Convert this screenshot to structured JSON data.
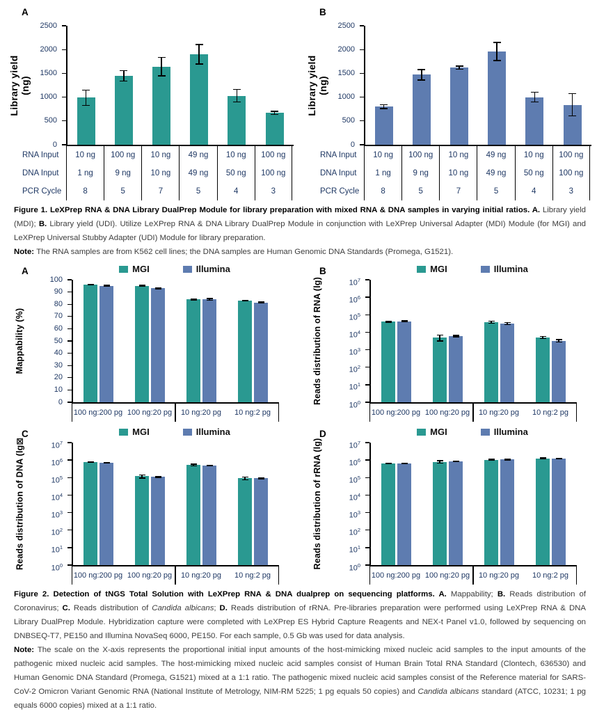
{
  "colors": {
    "mgi_teal": "#2A9991",
    "illumina_blue": "#5E7CB0",
    "axis_text": "#1F3864",
    "body_text": "#3D3D3D",
    "axis_line": "#000000"
  },
  "figure1": {
    "table": {
      "rows": [
        {
          "label": "RNA Input",
          "values": [
            "10 ng",
            "100 ng",
            "10 ng",
            "49 ng",
            "10 ng",
            "100 ng"
          ]
        },
        {
          "label": "DNA Input",
          "values": [
            "1 ng",
            "9 ng",
            "10 ng",
            "49 ng",
            "50 ng",
            "100 ng"
          ]
        },
        {
          "label": "PCR Cycle",
          "values": [
            "8",
            "5",
            "7",
            "5",
            "4",
            "3"
          ]
        }
      ]
    },
    "caption": [
      {
        "t": "Figure 1. LeXPrep RNA & DNA Library DualPrep Module for library preparation with mixed RNA & DNA samples in varying initial ratios. ",
        "b": true
      },
      {
        "t": "A.",
        "b": true
      },
      {
        "t": " Library yield (MDI); "
      },
      {
        "t": "B.",
        "b": true
      },
      {
        "t": " Library yield (UDI). Utilize LeXPrep RNA & DNA Library DualPrep Module in conjunction with LeXPrep Universal Adapter (MDI) Module (for MGI) and LeXPrep Universal Stubby Adapter (UDI) Module for library preparation."
      }
    ],
    "note": [
      {
        "t": "Note: ",
        "b": true
      },
      {
        "t": "The RNA samples are from K562 cell lines; the DNA samples are Human Genomic DNA Standards (Promega, G1521)."
      }
    ]
  },
  "figure2": {
    "caption": [
      {
        "t": "Figure 2. Detection of tNGS Total Solution with LeXPrep RNA & DNA dualprep on sequencing platforms. ",
        "b": true
      },
      {
        "t": "A.",
        "b": true
      },
      {
        "t": " Mappability; "
      },
      {
        "t": "B.",
        "b": true
      },
      {
        "t": " Reads distribution of Coronavirus; "
      },
      {
        "t": "C.",
        "b": true
      },
      {
        "t": " Reads distribution of "
      },
      {
        "t": "Candida albicans",
        "i": true
      },
      {
        "t": "; "
      },
      {
        "t": "D.",
        "b": true
      },
      {
        "t": " Reads distribution of rRNA. Pre-libraries preparation were performed using LeXPrep RNA & DNA Library DualPrep Module. Hybridization capture were completed with LeXPrep ES Hybrid Capture Reagents and NEX-t Panel v1.0, followed by sequencing on DNBSEQ-T7, PE150 and Illumina NovaSeq 6000, PE150. For each sample, 0.5 Gb was used for data analysis."
      }
    ],
    "note": [
      {
        "t": "Note: ",
        "b": true
      },
      {
        "t": "The scale on the X-axis represents the proportional initial input amounts of the host-mimicking mixed nucleic acid samples to the input amounts of the pathogenic mixed nucleic acid samples. The host-mimicking mixed nucleic acid samples consist of Human Brain Total RNA Standard (Clontech, 636530) and Human Genomic DNA Standard (Promega, G1521) mixed at a 1:1 ratio. The pathogenic mixed nucleic acid samples consist of the Reference material for SARS-CoV-2 Omicron Variant Genomic RNA (National Institute of Metrology, NIM-RM 5225; 1 pg equals 50 copies) and "
      },
      {
        "t": "Candida albicans",
        "i": true
      },
      {
        "t": " standard (ATCC, 10231; 1 pg equals 6000 copies) mixed at a 1:1 ratio."
      }
    ]
  },
  "chart_data": [
    {
      "figure": "Figure 1",
      "panel": "A",
      "type": "bar",
      "scale": "linear",
      "ylabel": "Library yield (ng)",
      "ylabel_lines": [
        "Library yield",
        "(ng)"
      ],
      "ylim": [
        0,
        2500
      ],
      "yticks": [
        0,
        500,
        1000,
        1500,
        2000,
        2500
      ],
      "bar_color": "#2A9991",
      "categories": [
        "RNA 10 ng / DNA 1 ng / PCR 8",
        "RNA 100 ng / DNA 9 ng / PCR 5",
        "RNA 10 ng / DNA 10 ng / PCR 7",
        "RNA 49 ng / DNA 49 ng / PCR 5",
        "RNA 10 ng / DNA 50 ng / PCR 4",
        "RNA 100 ng / DNA 100 ng / PCR 3"
      ],
      "values": [
        990,
        1450,
        1640,
        1900,
        1030,
        670
      ],
      "errors": [
        160,
        110,
        195,
        205,
        135,
        30
      ]
    },
    {
      "figure": "Figure 1",
      "panel": "B",
      "type": "bar",
      "scale": "linear",
      "ylabel": "Library yield (ng)",
      "ylabel_lines": [
        "Library yield",
        "(ng)"
      ],
      "ylim": [
        0,
        2500
      ],
      "yticks": [
        0,
        500,
        1000,
        1500,
        2000,
        2500
      ],
      "bar_color": "#5E7CB0",
      "categories": [
        "RNA 10 ng / DNA 1 ng / PCR 8",
        "RNA 100 ng / DNA 9 ng / PCR 5",
        "RNA 10 ng / DNA 10 ng / PCR 7",
        "RNA 49 ng / DNA 49 ng / PCR 5",
        "RNA 10 ng / DNA 50 ng / PCR 4",
        "RNA 100 ng / DNA 100 ng / PCR 3"
      ],
      "values": [
        800,
        1470,
        1620,
        1960,
        1000,
        840
      ],
      "errors": [
        40,
        110,
        35,
        190,
        105,
        235
      ]
    },
    {
      "figure": "Figure 2",
      "panel": "A",
      "type": "grouped-bar",
      "scale": "linear",
      "ylabel": "Mappability (%)",
      "ylim": [
        0,
        100
      ],
      "yticks": [
        0,
        10,
        20,
        30,
        40,
        50,
        60,
        70,
        80,
        90,
        100
      ],
      "categories": [
        "100 ng:200 pg",
        "100 ng:20 pg",
        "10 ng:20 pg",
        "10 ng:2 pg"
      ],
      "series": [
        {
          "name": "MGI",
          "color": "#2A9991",
          "values": [
            96,
            95,
            84,
            83
          ],
          "errors": [
            0.4,
            0.4,
            0.4,
            0.4
          ]
        },
        {
          "name": "Illumina",
          "color": "#5E7CB0",
          "values": [
            95,
            93,
            84,
            81.5
          ],
          "errors": [
            0.4,
            0.4,
            0.7,
            0.4
          ]
        }
      ]
    },
    {
      "figure": "Figure 2",
      "panel": "B",
      "type": "grouped-bar",
      "scale": "log",
      "ylabel": "Reads distribution of RNA (lg)",
      "ylim": [
        1,
        10000000
      ],
      "yticks": [
        0,
        1,
        2,
        3,
        4,
        5,
        6,
        7
      ],
      "categories": [
        "100 ng:200 pg",
        "100 ng:20 pg",
        "10 ng:20 pg",
        "10 ng:2 pg"
      ],
      "series": [
        {
          "name": "MGI",
          "color": "#2A9991",
          "values": [
            40000,
            5000,
            38000,
            5000
          ],
          "errors": [
            3000,
            1800,
            6000,
            700
          ]
        },
        {
          "name": "Illumina",
          "color": "#5E7CB0",
          "values": [
            42000,
            6000,
            32000,
            3300
          ],
          "errors": [
            3000,
            500,
            4000,
            500
          ]
        }
      ]
    },
    {
      "figure": "Figure 2",
      "panel": "C",
      "type": "grouped-bar",
      "scale": "log",
      "ylabel": "Reads distribution of DNA (lg⊠",
      "ylim": [
        1,
        10000000
      ],
      "yticks": [
        0,
        1,
        2,
        3,
        4,
        5,
        6,
        7
      ],
      "categories": [
        "100 ng:200 pg",
        "100 ng:20 pg",
        "10 ng:20 pg",
        "10 ng:2 pg"
      ],
      "series": [
        {
          "name": "MGI",
          "color": "#2A9991",
          "values": [
            800000,
            120000,
            520000,
            90000
          ],
          "errors": [
            25000,
            25000,
            60000,
            15000
          ]
        },
        {
          "name": "Illumina",
          "color": "#5E7CB0",
          "values": [
            720000,
            110000,
            500000,
            90000
          ],
          "errors": [
            12000,
            6000,
            10000,
            5000
          ]
        }
      ]
    },
    {
      "figure": "Figure 2",
      "panel": "D",
      "type": "grouped-bar",
      "scale": "log",
      "ylabel": "Reads distribution of rRNA (lg)",
      "ylim": [
        1,
        10000000
      ],
      "yticks": [
        0,
        1,
        2,
        3,
        4,
        5,
        6,
        7
      ],
      "categories": [
        "100 ng:200 pg",
        "100 ng:20 pg",
        "10 ng:20 pg",
        "10 ng:2 pg"
      ],
      "series": [
        {
          "name": "MGI",
          "color": "#2A9991",
          "values": [
            620000,
            800000,
            1050000,
            1250000
          ],
          "errors": [
            15000,
            120000,
            70000,
            70000
          ]
        },
        {
          "name": "Illumina",
          "color": "#5E7CB0",
          "values": [
            650000,
            850000,
            1080000,
            1180000
          ],
          "errors": [
            30000,
            40000,
            50000,
            40000
          ]
        }
      ]
    }
  ]
}
